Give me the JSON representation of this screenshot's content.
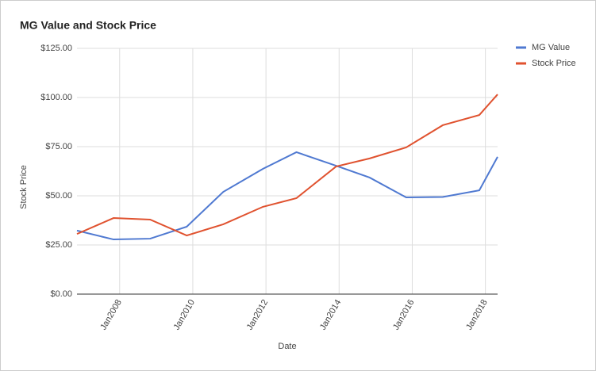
{
  "chart_data": {
    "type": "line",
    "title": "MG Value and Stock Price",
    "x_label": "Date",
    "y_label": "Stock Price",
    "x": [
      "2006-11",
      "2007-11",
      "2008-11",
      "2009-11",
      "2010-11",
      "2011-12",
      "2012-11",
      "2013-12",
      "2014-11",
      "2015-11",
      "2016-11",
      "2017-11",
      "2018-05"
    ],
    "series": [
      {
        "name": "MG Value",
        "color": "#4f79d1",
        "values": [
          32.3,
          27.8,
          28.2,
          34.3,
          52.0,
          63.7,
          72.2,
          65.3,
          59.3,
          49.2,
          49.4,
          52.8,
          69.8
        ]
      },
      {
        "name": "Stock Price",
        "color": "#e0522f",
        "values": [
          30.6,
          38.7,
          37.9,
          29.8,
          35.5,
          44.4,
          48.8,
          64.9,
          69.0,
          74.6,
          85.9,
          91.1,
          101.6
        ]
      }
    ],
    "xlim": [
      "2006-11",
      "2018-05"
    ],
    "xticks": [
      {
        "value": "2008-01",
        "label": "Jan2008"
      },
      {
        "value": "2010-01",
        "label": "Jan2010"
      },
      {
        "value": "2012-01",
        "label": "Jan2012"
      },
      {
        "value": "2014-01",
        "label": "Jan2014"
      },
      {
        "value": "2016-01",
        "label": "Jan2016"
      },
      {
        "value": "2018-01",
        "label": "Jan2018"
      }
    ],
    "ylim": [
      0,
      125
    ],
    "yticks": [
      {
        "value": 0,
        "label": "$0.00"
      },
      {
        "value": 25,
        "label": "$25.00"
      },
      {
        "value": 50,
        "label": "$50.00"
      },
      {
        "value": 75,
        "label": "$75.00"
      },
      {
        "value": 100,
        "label": "$100.00"
      },
      {
        "value": 125,
        "label": "$125.00"
      }
    ],
    "grid": true,
    "legend": "right"
  }
}
